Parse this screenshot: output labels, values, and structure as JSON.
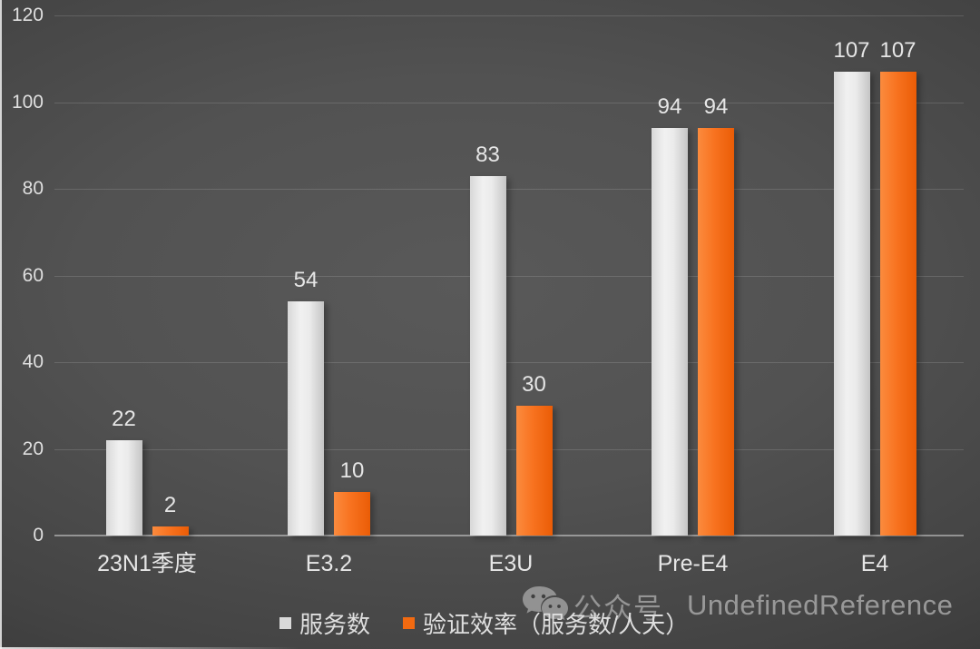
{
  "chart_data": {
    "type": "bar",
    "title": "",
    "categories": [
      "23N1季度",
      "E3.2",
      "E3U",
      "Pre-E4",
      "E4"
    ],
    "series": [
      {
        "name": "服务数",
        "color": "#d9d9d9",
        "values": [
          22,
          54,
          83,
          94,
          107
        ]
      },
      {
        "name": "验证效率（服务数/人天）",
        "color": "#f26a11",
        "values": [
          2,
          10,
          30,
          94,
          107
        ]
      }
    ],
    "ylim": [
      0,
      120
    ],
    "y_ticks": [
      0,
      20,
      40,
      60,
      80,
      100,
      120
    ],
    "grid": true,
    "legend_position": "bottom",
    "data_labels": true,
    "background": "#4a4a4a"
  },
  "watermark": {
    "icon": "wechat-icon",
    "prefix": "公众号",
    "name": "UndefinedReference"
  }
}
